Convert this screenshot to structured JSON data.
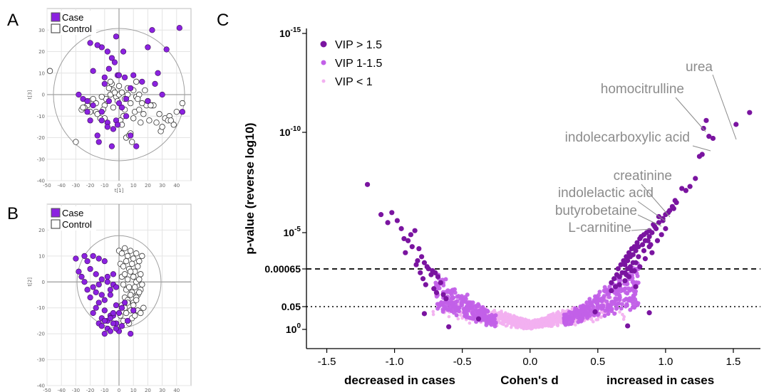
{
  "panels": {
    "A": "A",
    "B": "B",
    "C": "C"
  },
  "colors": {
    "vip_high": "#7a14a0",
    "vip_mid": "#c260e8",
    "vip_low": "#f2b0f0",
    "case": "#8b22e0",
    "control": "#ffffff",
    "annotation": "#8c8c8c"
  },
  "chart_data": [
    {
      "panel": "A",
      "type": "scatter",
      "xlabel": "t[1]",
      "ylabel": "t[3]",
      "xlim": [
        -50,
        50
      ],
      "ylim": [
        -40,
        40
      ],
      "xticks": [
        "-50",
        "-40",
        "-30",
        "-20",
        "-10",
        "0",
        "10",
        "20",
        "30",
        "40"
      ],
      "yticks": [
        "-40",
        "-30",
        "-20",
        "-10",
        "0",
        "10",
        "20",
        "30"
      ],
      "legend": [
        "Case",
        "Control"
      ],
      "series": [
        {
          "name": "Case",
          "x": [
            -2,
            -20,
            -12,
            -8,
            -5,
            -15,
            -3,
            3,
            20,
            23,
            33,
            42,
            -10,
            -7,
            -1,
            0,
            4,
            10,
            27,
            -18,
            -10,
            5,
            30,
            44,
            -28,
            -25,
            -18,
            -12,
            -7,
            -2,
            2,
            -20,
            -15,
            -14,
            -8,
            -4,
            -1,
            8,
            12,
            -5,
            -22,
            0,
            5,
            -8,
            20,
            -22,
            -12,
            8,
            16,
            25
          ],
          "y": [
            27,
            24,
            22,
            20,
            17,
            23,
            15,
            20,
            22,
            30,
            21,
            31,
            8,
            12,
            9,
            9,
            8,
            9,
            10,
            11,
            5,
            -10,
            0,
            -8,
            0,
            -2,
            -5,
            -8,
            -3,
            -12,
            -6,
            -12,
            -19,
            -22,
            -13,
            -16,
            -14,
            -19,
            -24,
            -24,
            -8,
            -4,
            -2,
            -15,
            -3,
            -3,
            -12,
            3,
            6,
            5
          ]
        },
        {
          "name": "Control",
          "x": [
            -48,
            -30,
            -22,
            -20,
            -16,
            -13,
            -10,
            -8,
            -6,
            -4,
            -2,
            0,
            2,
            4,
            6,
            8,
            10,
            12,
            14,
            -26,
            -24,
            -18,
            -15,
            -11,
            -9,
            -7,
            -5,
            -3,
            -1,
            1,
            3,
            5,
            7,
            9,
            11,
            13,
            15,
            17,
            19,
            21,
            23,
            26,
            29,
            32,
            35,
            38,
            44,
            -25,
            -20,
            -12,
            -6,
            0,
            6,
            12,
            18,
            24,
            28,
            34,
            -16,
            -10,
            2,
            8,
            14,
            20,
            30,
            36,
            40,
            -18,
            -4,
            4,
            10,
            16,
            22
          ],
          "y": [
            11,
            -22,
            -5,
            -3,
            -8,
            -11,
            -5,
            -3,
            0,
            2,
            -1,
            0,
            1,
            -2,
            3,
            -4,
            2,
            -1,
            0,
            -7,
            -6,
            -4,
            -9,
            -7,
            -2,
            3,
            5,
            1,
            -3,
            -12,
            -10,
            -20,
            -19,
            -22,
            -8,
            -2,
            -13,
            -9,
            -5,
            -12,
            -5,
            -13,
            -17,
            -11,
            -10,
            -14,
            -4,
            -6,
            -8,
            -1,
            6,
            4,
            0,
            6,
            2,
            -5,
            -9,
            -12,
            -4,
            -11,
            -14,
            -18,
            -7,
            -3,
            -15,
            -12,
            -8,
            -2,
            -6,
            -7,
            -11,
            -4,
            -5
          ]
        }
      ]
    },
    {
      "panel": "B",
      "type": "scatter",
      "xlabel": "t[1]",
      "ylabel": "t[2]",
      "xlim": [
        -50,
        50
      ],
      "ylim": [
        -40,
        30
      ],
      "xticks": [
        "-50",
        "-40",
        "-30",
        "-20",
        "-10",
        "0",
        "10",
        "20",
        "30",
        "40"
      ],
      "yticks": [
        "-40",
        "-30",
        "-20",
        "-10",
        "0",
        "10",
        "20"
      ],
      "legend": [
        "Case",
        "Control"
      ],
      "series": [
        {
          "name": "Case",
          "x": [
            -30,
            -24,
            -22,
            -18,
            -14,
            -10,
            -28,
            -26,
            -20,
            -16,
            -12,
            -8,
            -4,
            -24,
            -18,
            -14,
            -8,
            -4,
            -22,
            -16,
            -12,
            -6,
            -2,
            -20,
            -14,
            -10,
            -6,
            -2,
            2,
            -16,
            -10,
            -6,
            -18,
            -12,
            -8,
            -4,
            -14,
            -10,
            -6,
            -2,
            -12,
            -8,
            -4,
            0,
            -10,
            -6,
            -2,
            2,
            6,
            10,
            4,
            8,
            -4,
            0
          ],
          "y": [
            9,
            10,
            8,
            10,
            9,
            8,
            4,
            2,
            5,
            3,
            1,
            2,
            3,
            0,
            -2,
            -1,
            0,
            -1,
            -3,
            -4,
            -5,
            -3,
            -2,
            -6,
            -8,
            -7,
            -5,
            -9,
            -10,
            -10,
            -11,
            -13,
            -12,
            -14,
            -15,
            -13,
            -16,
            -15,
            -14,
            -16,
            -17,
            -18,
            -16,
            -19,
            -20,
            -19,
            -18,
            -17,
            -15,
            -11,
            -8,
            -20,
            -12,
            -12
          ]
        },
        {
          "name": "Control",
          "x": [
            0,
            2,
            4,
            6,
            8,
            10,
            12,
            14,
            16,
            1,
            3,
            5,
            7,
            9,
            11,
            13,
            15,
            2,
            4,
            6,
            8,
            10,
            12,
            14,
            16,
            3,
            5,
            7,
            9,
            11,
            13,
            15,
            4,
            6,
            8,
            10,
            12,
            14,
            2,
            4,
            6,
            8,
            10,
            12,
            1,
            5,
            9,
            13,
            3,
            7,
            11,
            15,
            17
          ],
          "y": [
            12,
            11,
            13,
            10,
            12,
            9,
            11,
            8,
            10,
            7,
            6,
            8,
            5,
            7,
            4,
            6,
            3,
            2,
            3,
            1,
            4,
            2,
            0,
            1,
            -1,
            -1,
            -3,
            -2,
            -4,
            -2,
            -5,
            -3,
            -6,
            -7,
            -5,
            -8,
            -6,
            -4,
            -9,
            -10,
            -8,
            -11,
            -9,
            -7,
            -13,
            -12,
            -14,
            -11,
            -15,
            -16,
            -13,
            -12,
            -10
          ]
        }
      ]
    },
    {
      "panel": "C",
      "type": "scatter",
      "title": "",
      "xlabel": "Cohen's d",
      "xlabel_left": "decreased in cases",
      "xlabel_right": "increased in cases",
      "ylabel": "p-value (reverse log10)",
      "xlim": [
        -1.65,
        1.7
      ],
      "x_ticks": [
        "-1.5",
        "-1.0",
        "-0.5",
        "0.0",
        "0.5",
        "1.0",
        "1.5"
      ],
      "y_scale": "reverse log10",
      "y_tick_labels": [
        {
          "label": "10",
          "exp": "0",
          "log10p": 0
        },
        {
          "label": "0.05",
          "exp": "",
          "log10p": 1.3
        },
        {
          "label": "0.00065",
          "exp": "",
          "log10p": 3.19
        },
        {
          "label": "10",
          "exp": "-5",
          "log10p": 5
        },
        {
          "label": "10",
          "exp": "-10",
          "log10p": 10
        },
        {
          "label": "10",
          "exp": "-15",
          "log10p": 15
        }
      ],
      "threshold_lines": [
        {
          "log10p": 3.19,
          "style": "dashed"
        },
        {
          "log10p": 1.3,
          "style": "dotted"
        }
      ],
      "legend": [
        "VIP > 1.5",
        "VIP 1-1.5",
        "VIP < 1"
      ],
      "legend_position": "top-left",
      "annotations": [
        {
          "text": "urea",
          "x": 1.5,
          "log10p": 10.9
        },
        {
          "text": "homocitrulline",
          "x": 1.29,
          "log10p": 10.1
        },
        {
          "text": "indolecarboxylic acid",
          "x": 1.35,
          "log10p": 9.5
        },
        {
          "text": "creatinine",
          "x": 1.02,
          "log10p": 6.2
        },
        {
          "text": "indolelactic acid",
          "x": 1.0,
          "log10p": 5.8
        },
        {
          "text": "butyrobetaine",
          "x": 0.98,
          "log10p": 5.4
        },
        {
          "text": "L-carnitine",
          "x": 0.92,
          "log10p": 5.0
        }
      ],
      "series": [
        {
          "name": "VIP > 1.5",
          "x": [
            1.62,
            1.52,
            1.3,
            1.32,
            1.35,
            1.28,
            1.27,
            1.25,
            1.22,
            1.18,
            1.15,
            1.12,
            1.08,
            1.05,
            1.02,
            0.98,
            0.95,
            0.92,
            0.9,
            0.88,
            0.85,
            0.83,
            0.8,
            0.78,
            0.76,
            0.74,
            0.72,
            0.7,
            0.95,
            0.98,
            1.0,
            1.03,
            1.06,
            0.93,
            0.88,
            0.84,
            0.81,
            0.79,
            0.77,
            0.75,
            0.73,
            0.71,
            0.69,
            0.67,
            0.65,
            0.87,
            0.82,
            0.86,
            0.91,
            0.89,
            0.76,
            0.72,
            0.68,
            0.64,
            0.62,
            0.6,
            0.66,
            0.7,
            0.74,
            0.78,
            0.8,
            0.84,
            0.88,
            0.9,
            0.94,
            0.97,
            1.0,
            0.75,
            0.71,
            1.07,
            0.78,
            0.85,
            0.6,
            -1.2,
            -1.1,
            -1.05,
            -0.95,
            -0.9,
            -0.82,
            -0.8,
            -0.78,
            -0.76,
            -0.72,
            -0.7,
            -0.68,
            -0.66,
            -0.88,
            -0.85,
            -0.98,
            -1.02,
            -0.92,
            -0.75,
            -0.73,
            -0.84,
            -0.81,
            -0.79,
            -0.77,
            -0.71,
            -0.69,
            -0.83,
            -0.87,
            -0.93,
            -0.64,
            -0.62,
            0.7,
            0.73,
            0.77,
            0.81,
            0.63,
            0.66
          ],
          "y": [
            11.0,
            10.4,
            10.6,
            9.8,
            9.7,
            10.2,
            8.9,
            8.8,
            7.7,
            7.3,
            7.1,
            7.2,
            6.5,
            6.3,
            6.0,
            5.7,
            5.5,
            5.3,
            5.0,
            4.8,
            4.6,
            4.4,
            4.3,
            4.1,
            3.9,
            3.8,
            3.6,
            3.4,
            5.8,
            5.6,
            5.9,
            6.1,
            6.2,
            5.2,
            5.1,
            4.9,
            4.7,
            4.5,
            4.3,
            4.2,
            4.0,
            3.8,
            3.6,
            3.4,
            3.2,
            4.6,
            4.8,
            5.0,
            5.4,
            4.4,
            3.5,
            3.2,
            3.0,
            2.9,
            2.7,
            2.5,
            2.8,
            3.0,
            3.3,
            3.5,
            3.8,
            4.1,
            4.3,
            4.0,
            4.6,
            4.9,
            5.2,
            3.1,
            2.9,
            6.6,
            2.3,
            3.7,
            2.1,
            7.4,
            5.9,
            5.5,
            5.2,
            4.6,
            4.2,
            3.8,
            3.5,
            3.3,
            3.1,
            3.0,
            2.8,
            2.5,
            4.9,
            5.1,
            5.6,
            6.0,
            4.0,
            3.2,
            2.9,
            3.4,
            3.0,
            2.7,
            2.4,
            2.2,
            2.0,
            3.6,
            4.3,
            4.7,
            1.9,
            1.7,
            2.6,
            2.8,
            3.1,
            3.3,
            2.3,
            2.4
          ]
        },
        {
          "name": "VIP 1-1.5",
          "x": [],
          "y": []
        },
        {
          "name": "VIP < 1",
          "x": [],
          "y": []
        }
      ]
    }
  ]
}
